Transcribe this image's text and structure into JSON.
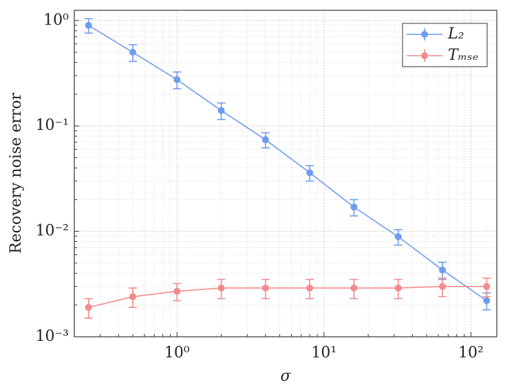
{
  "chart_data": {
    "type": "line",
    "xlabel": "σ",
    "ylabel": "Recovery noise error",
    "x": [
      0.25,
      0.5,
      1,
      2,
      4,
      8,
      16,
      32,
      64,
      128
    ],
    "series": [
      {
        "name": "L₂",
        "color": "#6f9cf0",
        "values": [
          0.9,
          0.5,
          0.275,
          0.14,
          0.074,
          0.036,
          0.017,
          0.0089,
          0.0043,
          0.0022
        ],
        "errors": [
          0.14,
          0.09,
          0.05,
          0.025,
          0.012,
          0.006,
          0.003,
          0.0015,
          0.0008,
          0.0004
        ]
      },
      {
        "name": "Tₘₛₑ",
        "color": "#f28b8b",
        "values": [
          0.0019,
          0.0024,
          0.0027,
          0.0029,
          0.0029,
          0.0029,
          0.0029,
          0.0029,
          0.003,
          0.003
        ],
        "errors": [
          0.0004,
          0.0005,
          0.0005,
          0.0006,
          0.0006,
          0.0006,
          0.0006,
          0.0006,
          0.0006,
          0.0006
        ]
      }
    ],
    "xscale": "log",
    "yscale": "log",
    "xlim": [
      0.2,
      150
    ],
    "ylim": [
      0.001,
      1.25
    ],
    "xticks": [
      {
        "value": 1,
        "label": "10⁰"
      },
      {
        "value": 10,
        "label": "10¹"
      },
      {
        "value": 100,
        "label": "10²"
      }
    ],
    "yticks": [
      {
        "value": 0.001,
        "label": "10⁻³"
      },
      {
        "value": 0.01,
        "label": "10⁻²"
      },
      {
        "value": 0.1,
        "label": "10⁻¹"
      },
      {
        "value": 1,
        "label": "10⁰"
      }
    ],
    "grid": true,
    "legend": "upper right"
  }
}
